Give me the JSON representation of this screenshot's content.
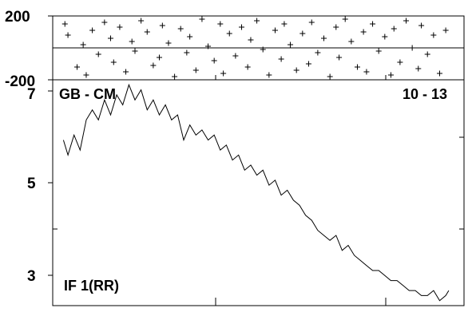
{
  "chart_data": [
    {
      "type": "scatter",
      "panel": "phase",
      "ylim": [
        -200,
        200
      ],
      "y_ticks": [
        "200",
        "-200"
      ],
      "marker": "plus",
      "color": "#000000",
      "points": [
        [
          0.4,
          150
        ],
        [
          0.5,
          80
        ],
        [
          0.8,
          -120
        ],
        [
          1.0,
          20
        ],
        [
          1.1,
          -170
        ],
        [
          1.3,
          110
        ],
        [
          1.5,
          -40
        ],
        [
          1.7,
          160
        ],
        [
          1.9,
          60
        ],
        [
          2.0,
          -90
        ],
        [
          2.2,
          130
        ],
        [
          2.4,
          -150
        ],
        [
          2.6,
          40
        ],
        [
          2.7,
          -20
        ],
        [
          2.9,
          170
        ],
        [
          3.1,
          100
        ],
        [
          3.3,
          -110
        ],
        [
          3.5,
          -60
        ],
        [
          3.6,
          140
        ],
        [
          3.8,
          30
        ],
        [
          4.0,
          -180
        ],
        [
          4.2,
          120
        ],
        [
          4.4,
          -30
        ],
        [
          4.5,
          70
        ],
        [
          4.7,
          -140
        ],
        [
          4.9,
          180
        ],
        [
          5.1,
          10
        ],
        [
          5.3,
          -80
        ],
        [
          5.5,
          150
        ],
        [
          5.6,
          -160
        ],
        [
          5.8,
          90
        ],
        [
          6.0,
          -50
        ],
        [
          6.2,
          130
        ],
        [
          6.4,
          -120
        ],
        [
          6.5,
          50
        ],
        [
          6.7,
          170
        ],
        [
          6.9,
          -10
        ],
        [
          7.1,
          -170
        ],
        [
          7.3,
          110
        ],
        [
          7.5,
          -70
        ],
        [
          7.6,
          150
        ],
        [
          7.8,
          20
        ],
        [
          8.0,
          -140
        ],
        [
          8.2,
          90
        ],
        [
          8.4,
          -100
        ],
        [
          8.5,
          160
        ],
        [
          8.7,
          -30
        ],
        [
          8.9,
          60
        ],
        [
          9.1,
          -180
        ],
        [
          9.3,
          130
        ],
        [
          9.4,
          -60
        ],
        [
          9.6,
          180
        ],
        [
          9.8,
          40
        ],
        [
          10.0,
          -120
        ],
        [
          10.2,
          100
        ],
        [
          10.3,
          -150
        ],
        [
          10.5,
          150
        ],
        [
          10.7,
          -20
        ],
        [
          10.9,
          70
        ],
        [
          11.1,
          -170
        ],
        [
          11.2,
          120
        ],
        [
          11.4,
          -90
        ],
        [
          11.6,
          170
        ],
        [
          11.8,
          0
        ],
        [
          12.0,
          -130
        ],
        [
          12.1,
          140
        ],
        [
          12.3,
          -40
        ],
        [
          12.5,
          80
        ],
        [
          12.7,
          -160
        ],
        [
          12.9,
          110
        ]
      ]
    },
    {
      "type": "line",
      "panel": "amplitude",
      "ylim": [
        2.5,
        7.0
      ],
      "y_ticks": [
        "7",
        "5",
        "3"
      ],
      "labels": {
        "top_left": "GB - CM",
        "top_right": "10 - 13",
        "bottom_left": "IF 1(RR)"
      },
      "color": "#000000",
      "x": [
        0.35,
        0.5,
        0.7,
        0.9,
        1.1,
        1.3,
        1.5,
        1.7,
        1.9,
        2.1,
        2.3,
        2.5,
        2.7,
        2.9,
        3.1,
        3.3,
        3.5,
        3.7,
        3.9,
        4.1,
        4.3,
        4.5,
        4.7,
        4.9,
        5.1,
        5.3,
        5.5,
        5.7,
        5.9,
        6.1,
        6.3,
        6.5,
        6.7,
        6.9,
        7.1,
        7.3,
        7.5,
        7.7,
        7.9,
        8.1,
        8.3,
        8.5,
        8.7,
        8.9,
        9.1,
        9.3,
        9.5,
        9.7,
        9.9,
        10.1,
        10.3,
        10.5,
        10.7,
        10.9,
        11.1,
        11.3,
        11.5,
        11.7,
        11.9,
        12.1,
        12.3,
        12.5,
        12.7,
        12.9,
        13.0
      ],
      "y": [
        5.8,
        5.5,
        5.9,
        5.6,
        6.2,
        6.4,
        6.2,
        6.6,
        6.3,
        6.7,
        6.5,
        6.9,
        6.6,
        6.8,
        6.4,
        6.6,
        6.3,
        6.5,
        6.2,
        6.3,
        5.8,
        6.1,
        5.9,
        6.0,
        5.8,
        5.9,
        5.6,
        5.7,
        5.4,
        5.5,
        5.2,
        5.3,
        5.1,
        5.2,
        4.9,
        5.0,
        4.7,
        4.8,
        4.6,
        4.5,
        4.3,
        4.2,
        4.0,
        3.9,
        3.8,
        3.9,
        3.6,
        3.7,
        3.5,
        3.4,
        3.3,
        3.2,
        3.2,
        3.1,
        3.0,
        3.0,
        2.9,
        2.8,
        2.8,
        2.7,
        2.7,
        2.8,
        2.6,
        2.7,
        2.8
      ]
    }
  ]
}
